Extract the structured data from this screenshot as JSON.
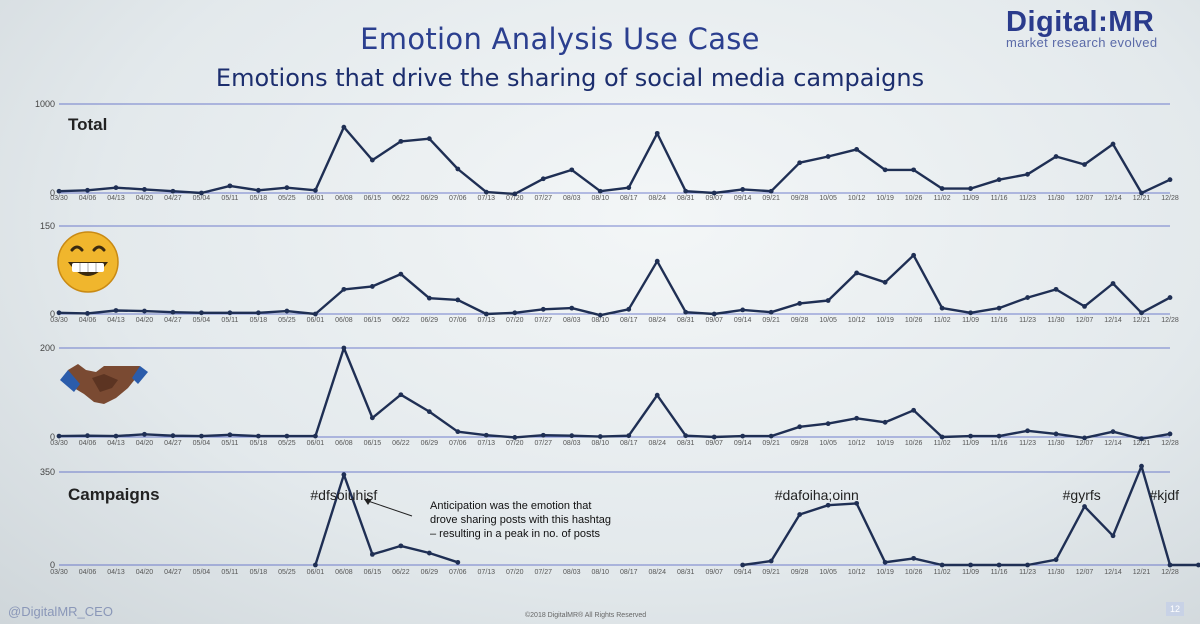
{
  "header": {
    "title": "Emotion Analysis Use Case",
    "subtitle": "Emotions that drive the sharing of social media campaigns"
  },
  "logo": {
    "main": "Digital:MR",
    "sub": "market research evolved"
  },
  "footer": {
    "handle": "@DigitalMR_CEO",
    "copyright": "©2018 DigitalMR® All Rights Reserved",
    "page": "12"
  },
  "colors": {
    "line": "#1f2f54",
    "grid": "#4a5ac0",
    "title": "#2b3f8f"
  },
  "chart_data": [
    {
      "type": "line",
      "name": "total",
      "label": "Total",
      "icon": "",
      "ylim": [
        0,
        1000
      ],
      "y_ticks": [
        "1000",
        "0"
      ],
      "categories": [
        "03/30",
        "04/06",
        "04/13",
        "04/20",
        "04/27",
        "05/04",
        "05/11",
        "05/18",
        "05/25",
        "06/01",
        "06/08",
        "06/15",
        "06/22",
        "06/29",
        "07/06",
        "07/13",
        "07/20",
        "07/27",
        "08/03",
        "08/10",
        "08/17",
        "08/24",
        "08/31",
        "09/07",
        "09/14",
        "09/21",
        "09/28",
        "10/05",
        "10/12",
        "10/19",
        "10/26",
        "11/02",
        "11/09",
        "11/16",
        "11/23",
        "11/30",
        "12/07",
        "12/14",
        "12/21",
        "12/28"
      ],
      "values": [
        20,
        30,
        60,
        40,
        20,
        0,
        80,
        30,
        60,
        30,
        740,
        370,
        580,
        610,
        270,
        10,
        -10,
        160,
        260,
        20,
        60,
        670,
        20,
        0,
        40,
        20,
        340,
        410,
        490,
        260,
        260,
        50,
        50,
        150,
        210,
        410,
        320,
        550,
        0,
        150
      ]
    },
    {
      "type": "line",
      "name": "joy",
      "label": "",
      "icon": "grinning-face-icon",
      "ylim": [
        0,
        150
      ],
      "y_ticks": [
        "150",
        "0"
      ],
      "categories": [
        "03/30",
        "04/06",
        "04/13",
        "04/20",
        "04/27",
        "05/04",
        "05/11",
        "05/18",
        "05/25",
        "06/01",
        "06/08",
        "06/15",
        "06/22",
        "06/29",
        "07/06",
        "07/13",
        "07/20",
        "07/27",
        "08/03",
        "08/10",
        "08/17",
        "08/24",
        "08/31",
        "09/07",
        "09/14",
        "09/21",
        "09/28",
        "10/05",
        "10/12",
        "10/19",
        "10/26",
        "11/02",
        "11/09",
        "11/16",
        "11/23",
        "11/30",
        "12/07",
        "12/14",
        "12/21",
        "12/28"
      ],
      "values": [
        2,
        1,
        6,
        5,
        3,
        2,
        2,
        2,
        5,
        0,
        42,
        47,
        68,
        27,
        24,
        0,
        2,
        8,
        10,
        -2,
        8,
        90,
        3,
        0,
        7,
        3,
        18,
        23,
        70,
        54,
        100,
        10,
        2,
        10,
        28,
        42,
        13,
        52,
        2,
        28
      ]
    },
    {
      "type": "line",
      "name": "trust",
      "label": "",
      "icon": "handshake-icon",
      "ylim": [
        0,
        200
      ],
      "y_ticks": [
        "200",
        "0"
      ],
      "categories": [
        "03/30",
        "04/06",
        "04/13",
        "04/20",
        "04/27",
        "05/04",
        "05/11",
        "05/18",
        "05/25",
        "06/01",
        "06/08",
        "06/15",
        "06/22",
        "06/29",
        "07/06",
        "07/13",
        "07/20",
        "07/27",
        "08/03",
        "08/10",
        "08/17",
        "08/24",
        "08/31",
        "09/07",
        "09/14",
        "09/21",
        "09/28",
        "10/05",
        "10/12",
        "10/19",
        "10/26",
        "11/02",
        "11/09",
        "11/16",
        "11/23",
        "11/30",
        "12/07",
        "12/14",
        "12/21",
        "12/28"
      ],
      "values": [
        2,
        3,
        2,
        6,
        3,
        2,
        5,
        2,
        2,
        2,
        200,
        43,
        95,
        57,
        12,
        4,
        -1,
        4,
        3,
        1,
        3,
        94,
        3,
        0,
        2,
        2,
        23,
        30,
        42,
        33,
        60,
        0,
        2,
        2,
        14,
        7,
        -2,
        12,
        -4,
        7
      ]
    },
    {
      "type": "line",
      "name": "campaigns",
      "label": "Campaigns",
      "icon": "",
      "ylim": [
        0,
        350
      ],
      "y_ticks": [
        "350",
        "0"
      ],
      "categories": [
        "03/30",
        "04/06",
        "04/13",
        "04/20",
        "04/27",
        "05/04",
        "05/11",
        "05/18",
        "05/25",
        "06/01",
        "06/08",
        "06/15",
        "06/22",
        "06/29",
        "07/06",
        "07/13",
        "07/20",
        "07/27",
        "08/03",
        "08/10",
        "08/17",
        "08/24",
        "08/31",
        "09/07",
        "09/14",
        "09/21",
        "09/28",
        "10/05",
        "10/12",
        "10/19",
        "10/26",
        "11/02",
        "11/09",
        "11/16",
        "11/23",
        "11/30",
        "12/07",
        "12/14",
        "12/21",
        "12/28"
      ],
      "segments": [
        {
          "values": [
            [
              9,
              0
            ],
            [
              10,
              340
            ],
            [
              11,
              40
            ],
            [
              12,
              72
            ],
            [
              13,
              45
            ],
            [
              14,
              10
            ]
          ]
        },
        {
          "values": [
            [
              24,
              0
            ],
            [
              25,
              15
            ],
            [
              26,
              190
            ],
            [
              27,
              225
            ],
            [
              28,
              232
            ],
            [
              29,
              10
            ],
            [
              30,
              25
            ],
            [
              31,
              0
            ],
            [
              32,
              0
            ],
            [
              33,
              0
            ],
            [
              34,
              0
            ],
            [
              35,
              20
            ],
            [
              36,
              220
            ],
            [
              37,
              110
            ],
            [
              38,
              372
            ],
            [
              39,
              0
            ],
            [
              40,
              0
            ]
          ]
        }
      ],
      "annotations": [
        {
          "text": "#dfsoiuhisf",
          "at": 10
        },
        {
          "text": "#dafoiha;oinn",
          "at": 26.6
        },
        {
          "text": "#gyrfs",
          "at": 35.9
        },
        {
          "text": "#kjdf",
          "at": 38.8
        }
      ],
      "note": [
        "Anticipation was the emotion that",
        "drove sharing posts with this hashtag",
        "– resulting in a peak in no. of posts"
      ]
    }
  ]
}
